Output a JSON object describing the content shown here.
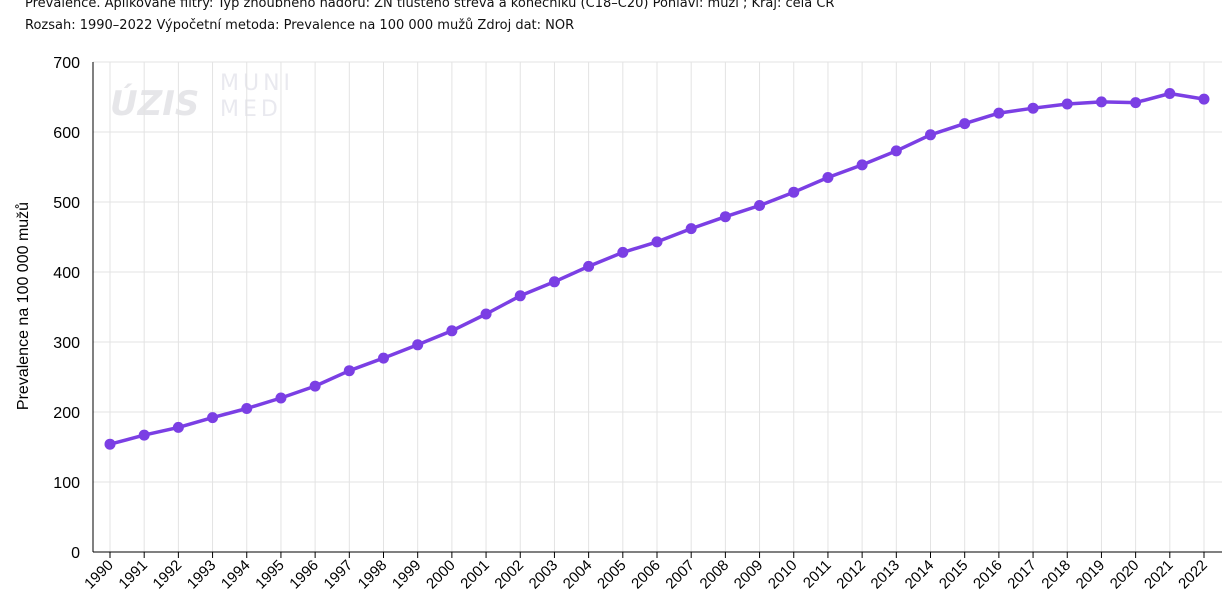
{
  "header": {
    "line1": "Prevalence. Aplikované filtry: Typ zhoubného nádoru: ZN tlustého střeva a konečníku (C18–C20) Pohlaví: muži ; Kraj: celá ČR",
    "line2": "Rozsah: 1990–2022 Výpočetní metoda: Prevalence na 100 000 mužů Zdroj dat: NOR"
  },
  "watermark": {
    "logo1": "ÚZIS",
    "logo2a": "MUNI",
    "logo2b": "MED"
  },
  "chart_data": {
    "type": "line",
    "title": "",
    "xlabel": "",
    "ylabel": "Prevalence na 100 000 mužů",
    "ylim": [
      0,
      700
    ],
    "yticks": [
      0,
      100,
      200,
      300,
      400,
      500,
      600,
      700
    ],
    "grid": true,
    "legend": "none",
    "color": "#7b3fe4",
    "categories": [
      "1990",
      "1991",
      "1992",
      "1993",
      "1994",
      "1995",
      "1996",
      "1997",
      "1998",
      "1999",
      "2000",
      "2001",
      "2002",
      "2003",
      "2004",
      "2005",
      "2006",
      "2007",
      "2008",
      "2009",
      "2010",
      "2011",
      "2012",
      "2013",
      "2014",
      "2015",
      "2016",
      "2017",
      "2018",
      "2019",
      "2020",
      "2021",
      "2022"
    ],
    "values": [
      154,
      167,
      178,
      192,
      205,
      220,
      237,
      259,
      277,
      296,
      316,
      340,
      366,
      386,
      408,
      428,
      443,
      462,
      479,
      495,
      514,
      535,
      553,
      573,
      596,
      612,
      627,
      634,
      640,
      643,
      642,
      655,
      647
    ]
  }
}
